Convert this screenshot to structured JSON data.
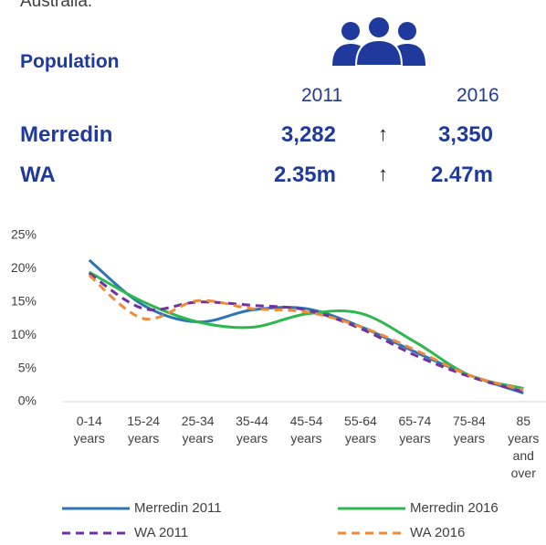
{
  "intro": "Australia.",
  "population": {
    "heading": "Population",
    "columns": [
      "2011",
      "2016"
    ],
    "rows": [
      {
        "name": "Merredin",
        "values": [
          "3,282",
          "3,350"
        ],
        "change": "↑"
      },
      {
        "name": "WA",
        "values": [
          "2.35m",
          "2.47m"
        ],
        "change": "↑"
      }
    ]
  },
  "chart_data": {
    "type": "line",
    "categories": [
      "0-14 years",
      "15-24 years",
      "25-34 years",
      "35-44 years",
      "45-54 years",
      "55-64 years",
      "65-74 years",
      "75-84 years",
      "85 years and over"
    ],
    "series": [
      {
        "name": "Merredin 2011",
        "color": "#2e75b6",
        "dash": false,
        "values": [
          21.3,
          14.5,
          12.0,
          13.8,
          14.0,
          11.3,
          7.5,
          4.0,
          1.3
        ]
      },
      {
        "name": "Merredin 2016",
        "color": "#2db84d",
        "dash": false,
        "values": [
          19.5,
          15.0,
          12.0,
          11.2,
          13.2,
          13.3,
          9.0,
          4.0,
          2.0
        ]
      },
      {
        "name": "WA 2011",
        "color": "#7030a0",
        "dash": true,
        "values": [
          19.3,
          14.0,
          15.0,
          14.5,
          13.8,
          11.0,
          7.0,
          3.8,
          1.5
        ]
      },
      {
        "name": "WA 2016",
        "color": "#f08a3a",
        "dash": true,
        "values": [
          19.0,
          12.5,
          15.2,
          14.0,
          13.5,
          11.3,
          7.8,
          4.0,
          1.8
        ]
      }
    ],
    "ylim": [
      0,
      25
    ],
    "yticks": [
      {
        "value": 0,
        "label": "0%"
      },
      {
        "value": 5,
        "label": "5%"
      },
      {
        "value": 10,
        "label": "10%"
      },
      {
        "value": 15,
        "label": "15%"
      },
      {
        "value": 20,
        "label": "20%"
      },
      {
        "value": 25,
        "label": "25%"
      }
    ],
    "grid": false,
    "legend": "bottom"
  }
}
